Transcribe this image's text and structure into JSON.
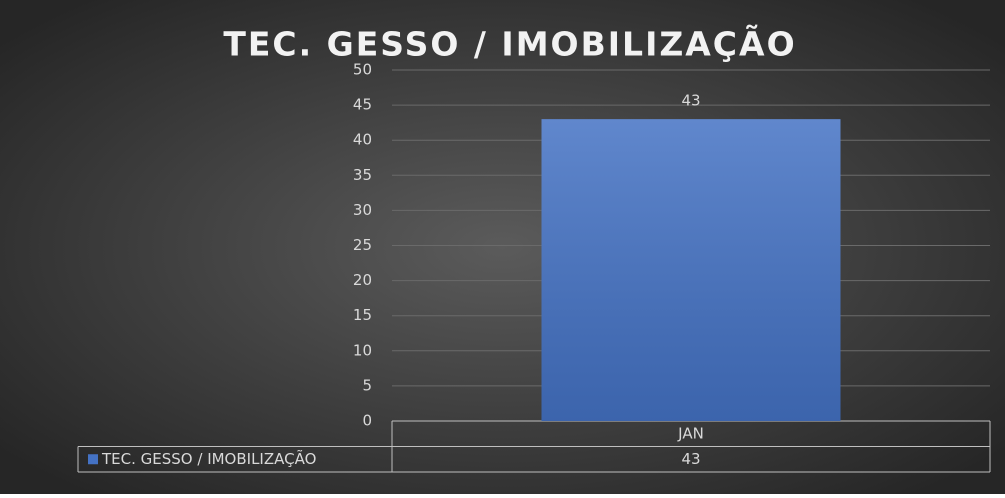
{
  "chart_data": {
    "type": "bar",
    "title": "TEC. GESSO / IMOBILIZAÇÃO",
    "categories": [
      "JAN"
    ],
    "series": [
      {
        "name": "TEC. GESSO / IMOBILIZAÇÃO",
        "color": "#4472c4",
        "values": [
          43
        ]
      }
    ],
    "ylim": [
      0,
      50
    ],
    "yticks": [
      0,
      5,
      10,
      15,
      20,
      25,
      30,
      35,
      40,
      45,
      50
    ],
    "grid": true,
    "data_labels": true,
    "data_table": true
  }
}
